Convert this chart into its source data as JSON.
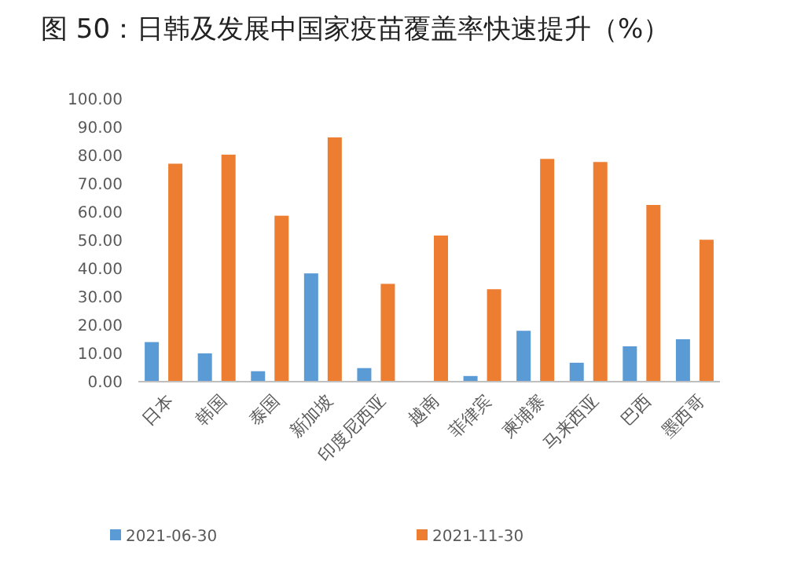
{
  "chart_data": {
    "type": "bar",
    "title": "图 50：日韩及发展中国家疫苗覆盖率快速提升（%）",
    "categories": [
      "日本",
      "韩国",
      "泰国",
      "新加坡",
      "印度尼西亚",
      "越南",
      "菲律宾",
      "柬埔寨",
      "马来西亚",
      "巴西",
      "墨西哥"
    ],
    "series": [
      {
        "name": "2021-06-30",
        "color": "#5b9bd5",
        "values": [
          14,
          10,
          3.7,
          38.3,
          4.8,
          null,
          2,
          18,
          6.7,
          12.5,
          15
        ]
      },
      {
        "name": "2021-11-30",
        "color": "#ed7d31",
        "values": [
          77.1,
          80.3,
          58.7,
          86.4,
          34.6,
          51.7,
          32.7,
          78.8,
          77.7,
          62.5,
          50.2
        ]
      }
    ],
    "ylim": [
      0,
      100
    ],
    "yticks": [
      {
        "value": 0,
        "label": "0.00"
      },
      {
        "value": 10,
        "label": "10.00"
      },
      {
        "value": 20,
        "label": "20.00"
      },
      {
        "value": 30,
        "label": "30.00"
      },
      {
        "value": 40,
        "label": "40.00"
      },
      {
        "value": 50,
        "label": "50.00"
      },
      {
        "value": 60,
        "label": "60.00"
      },
      {
        "value": 70,
        "label": "70.00"
      },
      {
        "value": 80,
        "label": "80.00"
      },
      {
        "value": 90,
        "label": "90.00"
      },
      {
        "value": 100,
        "label": "100.00"
      }
    ],
    "grid": false,
    "legend": "bottom"
  }
}
